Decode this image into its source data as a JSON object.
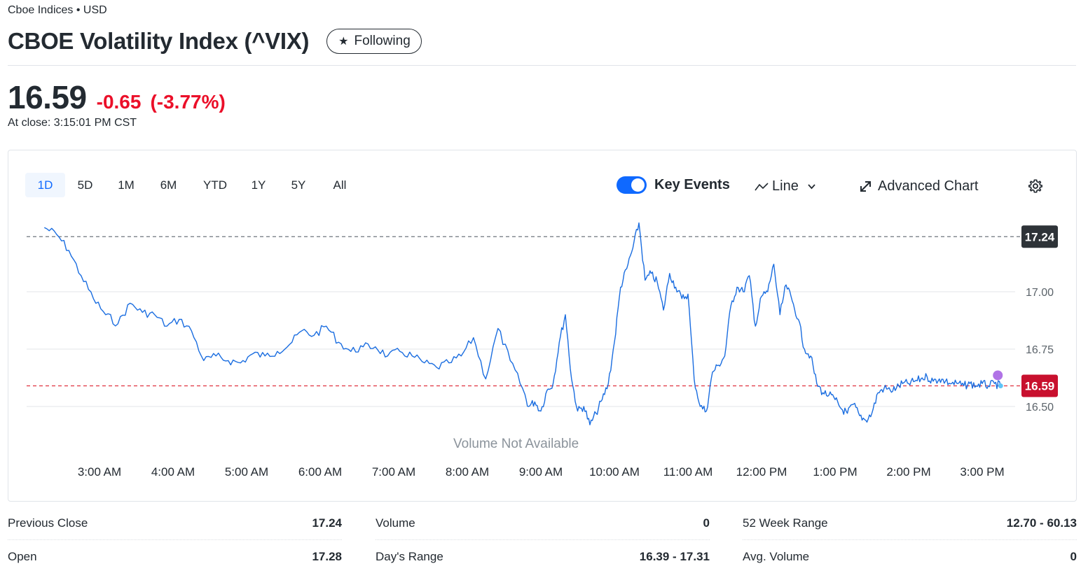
{
  "header": {
    "exchange": "Cboe Indices • USD",
    "title": "CBOE Volatility Index (^VIX)",
    "follow_label": "Following",
    "follow_icon": "star-icon"
  },
  "quote": {
    "price": "16.59",
    "change": "-0.65",
    "change_pct": "(-3.77%)",
    "close_time": "At close: 3:15:01 PM CST",
    "colors": {
      "down": "#eb0f29",
      "line": "#1a6de0",
      "text": "#232a31"
    }
  },
  "toolbar": {
    "ranges": [
      "1D",
      "5D",
      "1M",
      "6M",
      "YTD",
      "1Y",
      "5Y",
      "All"
    ],
    "active_range": "1D",
    "key_events_label": "Key Events",
    "key_events_on": true,
    "chart_type_label": "Line",
    "advanced_chart_label": "Advanced Chart",
    "settings_icon": "gear-icon"
  },
  "chart_data": {
    "type": "line",
    "title": "",
    "xlabel": "",
    "ylabel": "",
    "x_ticks": [
      "3:00 AM",
      "4:00 AM",
      "5:00 AM",
      "6:00 AM",
      "7:00 AM",
      "8:00 AM",
      "9:00 AM",
      "10:00 AM",
      "11:00 AM",
      "12:00 PM",
      "1:00 PM",
      "2:00 PM",
      "3:00 PM"
    ],
    "y_ticks": [
      "17.00",
      "16.75",
      "16.50"
    ],
    "ylim": [
      16.35,
      17.32
    ],
    "previous_close": 17.24,
    "previous_close_label": "17.24",
    "last_price": 16.59,
    "last_price_label": "16.59",
    "volume_note": "Volume Not Available",
    "series": [
      {
        "x": [
          "2:15 AM",
          "2:25 AM",
          "2:35 AM",
          "2:45 AM",
          "2:55 AM",
          "3:05 AM",
          "3:15 AM",
          "3:25 AM",
          "3:35 AM",
          "3:45 AM",
          "3:55 AM",
          "4:05 AM",
          "4:15 AM",
          "4:25 AM",
          "4:35 AM",
          "4:45 AM",
          "4:55 AM",
          "5:05 AM",
          "5:15 AM",
          "5:25 AM",
          "5:35 AM",
          "5:45 AM",
          "5:55 AM",
          "6:05 AM",
          "6:15 AM",
          "6:25 AM",
          "6:35 AM",
          "6:45 AM",
          "6:55 AM",
          "7:05 AM",
          "7:15 AM",
          "7:25 AM",
          "7:35 AM",
          "7:45 AM",
          "7:55 AM",
          "8:05 AM",
          "8:15 AM",
          "8:25 AM",
          "8:35 AM",
          "8:45 AM",
          "8:50 AM",
          "8:55 AM",
          "9:00 AM",
          "9:05 AM",
          "9:10 AM",
          "9:15 AM",
          "9:20 AM",
          "9:25 AM",
          "9:30 AM",
          "9:35 AM",
          "9:40 AM",
          "9:45 AM",
          "9:50 AM",
          "9:55 AM",
          "10:00 AM",
          "10:05 AM",
          "10:10 AM",
          "10:15 AM",
          "10:20 AM",
          "10:25 AM",
          "10:30 AM",
          "10:35 AM",
          "10:40 AM",
          "10:45 AM",
          "10:50 AM",
          "10:55 AM",
          "11:00 AM",
          "11:05 AM",
          "11:10 AM",
          "11:15 AM",
          "11:20 AM",
          "11:25 AM",
          "11:30 AM",
          "11:35 AM",
          "11:40 AM",
          "11:45 AM",
          "11:50 AM",
          "11:55 AM",
          "12:00 PM",
          "12:05 PM",
          "12:10 PM",
          "12:15 PM",
          "12:20 PM",
          "12:25 PM",
          "12:30 PM",
          "12:35 PM",
          "12:40 PM",
          "12:45 PM",
          "12:50 PM",
          "12:55 PM",
          "1:00 PM",
          "1:05 PM",
          "1:10 PM",
          "1:15 PM",
          "1:20 PM",
          "1:25 PM",
          "1:30 PM",
          "1:35 PM",
          "1:40 PM",
          "1:45 PM",
          "1:50 PM",
          "1:55 PM",
          "2:00 PM",
          "2:05 PM",
          "2:10 PM",
          "2:15 PM",
          "2:20 PM",
          "2:25 PM",
          "2:30 PM",
          "2:35 PM",
          "2:40 PM",
          "2:45 PM",
          "2:50 PM",
          "2:55 PM",
          "3:00 PM",
          "3:05 PM",
          "3:10 PM",
          "3:15 PM"
        ],
        "values": [
          17.28,
          17.25,
          17.18,
          17.07,
          16.97,
          16.9,
          16.86,
          16.95,
          16.91,
          16.9,
          16.85,
          16.88,
          16.83,
          16.7,
          16.72,
          16.7,
          16.69,
          16.73,
          16.72,
          16.74,
          16.77,
          16.83,
          16.81,
          16.85,
          16.78,
          16.74,
          16.76,
          16.76,
          16.72,
          16.74,
          16.72,
          16.69,
          16.67,
          16.69,
          16.72,
          16.8,
          16.62,
          16.84,
          16.7,
          16.58,
          16.5,
          16.52,
          16.48,
          16.57,
          16.6,
          16.78,
          16.9,
          16.62,
          16.48,
          16.5,
          16.42,
          16.47,
          16.53,
          16.6,
          16.78,
          17.02,
          17.1,
          17.19,
          17.3,
          17.05,
          17.08,
          17.04,
          16.92,
          17.08,
          17.02,
          16.97,
          16.99,
          16.62,
          16.5,
          16.48,
          16.65,
          16.68,
          16.72,
          16.94,
          17.02,
          17.0,
          17.07,
          16.85,
          16.98,
          17.0,
          17.12,
          16.9,
          17.03,
          16.96,
          16.88,
          16.75,
          16.72,
          16.6,
          16.56,
          16.55,
          16.53,
          16.49,
          16.47,
          16.51,
          16.46,
          16.44,
          16.47,
          16.56,
          16.58,
          16.57,
          16.58,
          16.6,
          16.6,
          16.61,
          16.62,
          16.63,
          16.61,
          16.62,
          16.61,
          16.6,
          16.6,
          16.59,
          16.6,
          16.59,
          16.6,
          16.59,
          16.6,
          16.59
        ]
      }
    ]
  },
  "stats": {
    "col1": [
      {
        "label": "Previous Close",
        "value": "17.24"
      },
      {
        "label": "Open",
        "value": "17.28"
      }
    ],
    "col2": [
      {
        "label": "Volume",
        "value": "0"
      },
      {
        "label": "Day's Range",
        "value": "16.39 - 17.31"
      }
    ],
    "col3": [
      {
        "label": "52 Week Range",
        "value": "12.70 - 60.13"
      },
      {
        "label": "Avg. Volume",
        "value": "0"
      }
    ]
  }
}
